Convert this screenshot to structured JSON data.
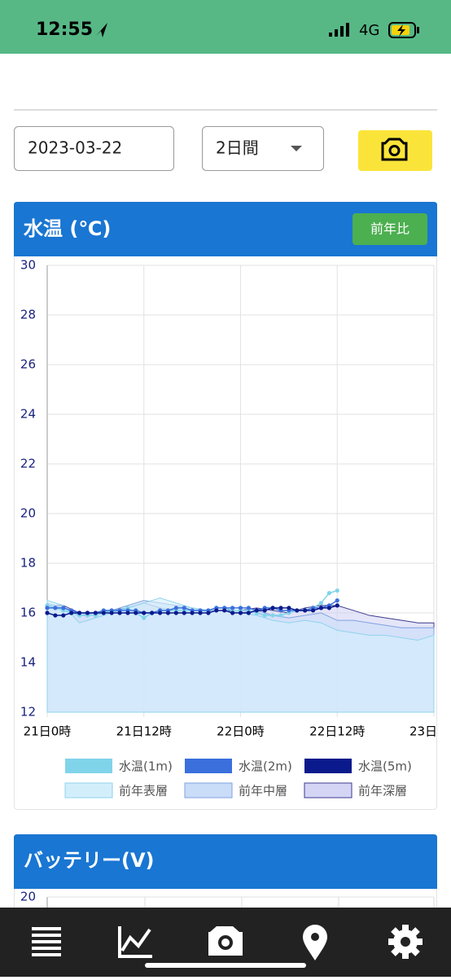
{
  "status_bar": {
    "time": "12:55",
    "network": "4G"
  },
  "controls": {
    "date": "2023-03-22",
    "period": "2日間"
  },
  "chart_data": [
    {
      "type": "line",
      "title": "水温 (℃)",
      "compare_button": "前年比",
      "xlim": [
        0,
        48
      ],
      "xticks": [
        {
          "value": 0,
          "label": "21日0時"
        },
        {
          "value": 12,
          "label": "21日12時"
        },
        {
          "value": 24,
          "label": "22日0時"
        },
        {
          "value": 36,
          "label": "22日12時"
        },
        {
          "value": 48,
          "label": "23日"
        }
      ],
      "ylim": [
        12,
        30
      ],
      "yticks": [
        12,
        14,
        16,
        18,
        20,
        22,
        24,
        26,
        28,
        30
      ],
      "grid": true,
      "series": [
        {
          "name": "前年深層",
          "kind": "area",
          "color": "#3b3b8f",
          "fill": "#d4d4f5",
          "x": [
            0,
            2,
            4,
            6,
            8,
            10,
            12,
            14,
            16,
            18,
            20,
            22,
            24,
            26,
            28,
            30,
            32,
            34,
            36,
            38,
            40,
            42,
            44,
            46,
            48
          ],
          "values": [
            16.3,
            16.3,
            16.0,
            16.0,
            16.1,
            16.2,
            16.4,
            16.2,
            16.1,
            16.1,
            16.1,
            16.1,
            16.1,
            16.2,
            16.1,
            16.0,
            16.2,
            16.3,
            16.3,
            16.1,
            15.9,
            15.8,
            15.7,
            15.6,
            15.6
          ]
        },
        {
          "name": "前年中層",
          "kind": "area",
          "color": "#7fa3dd",
          "fill": "#c9dcf8",
          "x": [
            0,
            2,
            4,
            6,
            8,
            10,
            12,
            14,
            16,
            18,
            20,
            22,
            24,
            26,
            28,
            30,
            32,
            34,
            36,
            38,
            40,
            42,
            44,
            46,
            48
          ],
          "values": [
            16.4,
            16.2,
            15.9,
            16.0,
            16.1,
            16.3,
            16.5,
            16.4,
            16.3,
            16.2,
            16.1,
            16.1,
            16.0,
            16.1,
            15.9,
            15.8,
            15.9,
            16.0,
            15.7,
            15.7,
            15.6,
            15.5,
            15.4,
            15.4,
            15.4
          ]
        },
        {
          "name": "前年表層",
          "kind": "area",
          "color": "#8fd3ee",
          "fill": "#d3eefb",
          "x": [
            0,
            2,
            4,
            6,
            8,
            10,
            12,
            14,
            16,
            18,
            20,
            22,
            24,
            26,
            28,
            30,
            32,
            34,
            36,
            38,
            40,
            42,
            44,
            46,
            48
          ],
          "values": [
            16.5,
            16.3,
            15.6,
            15.8,
            16.0,
            16.2,
            16.4,
            16.6,
            16.4,
            16.2,
            16.1,
            16.1,
            16.0,
            15.9,
            15.7,
            15.6,
            15.7,
            15.6,
            15.3,
            15.2,
            15.1,
            15.1,
            15.0,
            14.9,
            15.1
          ]
        },
        {
          "name": "水温(1m)",
          "kind": "line",
          "color": "#80d4ea",
          "x": [
            0,
            1,
            2,
            3,
            4,
            5,
            6,
            7,
            8,
            9,
            10,
            11,
            12,
            13,
            14,
            15,
            16,
            17,
            18,
            19,
            20,
            21,
            22,
            23,
            24,
            25,
            26,
            27,
            28,
            29,
            30,
            31,
            32,
            33,
            34,
            35,
            36
          ],
          "values": [
            16.3,
            16.2,
            16.1,
            16.0,
            15.9,
            15.9,
            15.9,
            16.0,
            16.1,
            16.1,
            16.2,
            16.0,
            15.8,
            16.0,
            16.1,
            16.1,
            16.1,
            16.1,
            16.1,
            16.1,
            16.1,
            16.2,
            16.2,
            16.1,
            16.1,
            16.1,
            16.0,
            15.9,
            15.9,
            15.9,
            16.0,
            16.1,
            16.1,
            16.2,
            16.4,
            16.8,
            16.9
          ]
        },
        {
          "name": "水温(2m)",
          "kind": "line",
          "color": "#3a6fdc",
          "x": [
            0,
            1,
            2,
            3,
            4,
            5,
            6,
            7,
            8,
            9,
            10,
            11,
            12,
            13,
            14,
            15,
            16,
            17,
            18,
            19,
            20,
            21,
            22,
            23,
            24,
            25,
            26,
            27,
            28,
            29,
            30,
            31,
            32,
            33,
            34,
            35,
            36
          ],
          "values": [
            16.2,
            16.2,
            16.2,
            16.1,
            16.0,
            16.0,
            16.0,
            16.1,
            16.1,
            16.1,
            16.1,
            16.1,
            16.0,
            16.0,
            16.1,
            16.1,
            16.2,
            16.2,
            16.1,
            16.1,
            16.1,
            16.2,
            16.2,
            16.2,
            16.2,
            16.2,
            16.1,
            16.2,
            16.2,
            16.1,
            16.1,
            16.1,
            16.1,
            16.2,
            16.2,
            16.3,
            16.5
          ]
        },
        {
          "name": "水温(5m)",
          "kind": "line",
          "color": "#0a1a8c",
          "x": [
            0,
            1,
            2,
            3,
            4,
            5,
            6,
            7,
            8,
            9,
            10,
            11,
            12,
            13,
            14,
            15,
            16,
            17,
            18,
            19,
            20,
            21,
            22,
            23,
            24,
            25,
            26,
            27,
            28,
            29,
            30,
            31,
            32,
            33,
            34,
            35,
            36
          ],
          "values": [
            16.0,
            15.9,
            15.9,
            16.0,
            16.0,
            16.0,
            16.0,
            16.0,
            16.0,
            16.0,
            16.0,
            16.0,
            16.0,
            16.0,
            16.0,
            16.0,
            16.0,
            16.0,
            16.0,
            16.0,
            16.0,
            16.1,
            16.1,
            16.0,
            16.0,
            16.0,
            16.1,
            16.1,
            16.2,
            16.2,
            16.2,
            16.1,
            16.1,
            16.1,
            16.2,
            16.2,
            16.3
          ]
        }
      ]
    },
    {
      "type": "line",
      "title": "バッテリー(V)",
      "yticks": [
        20
      ]
    }
  ]
}
